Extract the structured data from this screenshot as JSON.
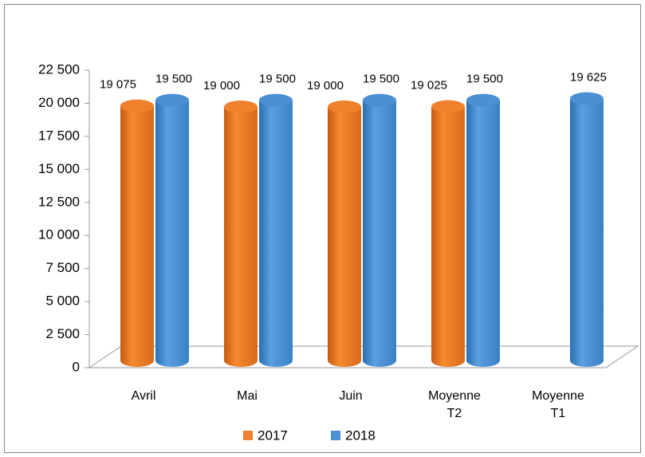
{
  "chart_data": {
    "type": "bar3d",
    "categories": [
      "Avril",
      "Mai",
      "Juin",
      "Moyenne T2",
      "Moyenne T1"
    ],
    "series": [
      {
        "name": "2017",
        "color": "#f0812c",
        "values": [
          19075,
          19000,
          19000,
          19025,
          null
        ],
        "value_labels": [
          "19 075",
          "19 000",
          "19 000",
          "19 025",
          null
        ]
      },
      {
        "name": "2018",
        "color": "#4a90d2",
        "values": [
          19500,
          19500,
          19500,
          19500,
          19625
        ],
        "value_labels": [
          "19 500",
          "19 500",
          "19 500",
          "19 500",
          "19 625"
        ]
      }
    ],
    "ylim": [
      0,
      22500
    ],
    "yticks": [
      0,
      {
        "value": 2500,
        "label": "2 500"
      },
      {
        "value": 5000,
        "label": "5 000"
      },
      {
        "value": 7500,
        "label": "7 500"
      },
      {
        "value": 10000,
        "label": "10 000"
      },
      {
        "value": 12500,
        "label": "12 500"
      },
      {
        "value": 15000,
        "label": "15 000"
      },
      {
        "value": 17500,
        "label": "17 500"
      },
      {
        "value": 20000,
        "label": "20 000"
      },
      {
        "value": 22500,
        "label": "22 500"
      }
    ],
    "legend": "bottom"
  }
}
